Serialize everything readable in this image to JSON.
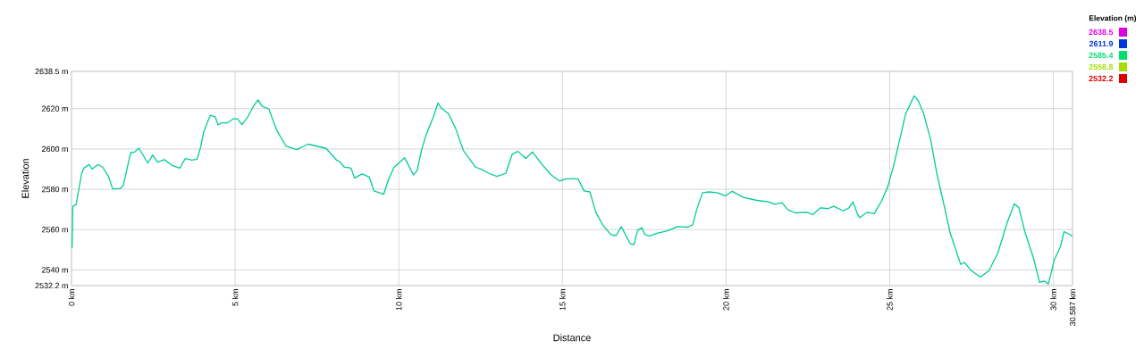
{
  "chart_data": {
    "type": "line",
    "xlabel": "Distance",
    "ylabel": "Elevation",
    "clabel": "Elevation (m)",
    "x": [
      0.02,
      0.04,
      0.14,
      0.31,
      0.38,
      0.54,
      0.63,
      0.81,
      0.95,
      1.13,
      1.26,
      1.49,
      1.58,
      1.81,
      1.93,
      2.06,
      2.33,
      2.48,
      2.63,
      2.84,
      3.09,
      3.31,
      3.48,
      3.68,
      3.84,
      3.95,
      4.04,
      4.24,
      4.39,
      4.48,
      4.59,
      4.77,
      4.95,
      5.07,
      5.21,
      5.39,
      5.54,
      5.7,
      5.82,
      6.03,
      6.27,
      6.55,
      6.88,
      7.23,
      7.78,
      8.12,
      8.19,
      8.33,
      8.54,
      8.65,
      8.88,
      9.1,
      9.24,
      9.54,
      9.67,
      9.85,
      10.18,
      10.45,
      10.56,
      10.7,
      10.83,
      11.06,
      11.2,
      11.31,
      11.52,
      11.74,
      11.97,
      12.34,
      12.56,
      12.75,
      13.0,
      13.27,
      13.47,
      13.64,
      13.88,
      14.09,
      14.38,
      14.66,
      14.91,
      15.11,
      15.48,
      15.66,
      15.84,
      16.02,
      16.25,
      16.48,
      16.64,
      16.8,
      17.07,
      17.19,
      17.3,
      17.43,
      17.52,
      17.66,
      17.89,
      18.21,
      18.52,
      18.84,
      18.98,
      19.12,
      19.28,
      19.48,
      19.75,
      19.98,
      20.19,
      20.53,
      20.94,
      21.3,
      21.48,
      21.71,
      21.89,
      22.12,
      22.48,
      22.65,
      22.89,
      23.12,
      23.29,
      23.58,
      23.76,
      23.88,
      24.01,
      24.08,
      24.31,
      24.53,
      24.76,
      24.94,
      25.13,
      25.31,
      25.49,
      25.75,
      25.87,
      26.04,
      26.26,
      26.44,
      26.65,
      26.85,
      27.08,
      27.17,
      27.29,
      27.49,
      27.77,
      28.04,
      28.31,
      28.59,
      28.81,
      28.95,
      29.13,
      29.4,
      29.58,
      29.72,
      29.85,
      30.03,
      30.22,
      30.33,
      30.587
    ],
    "values": [
      2551,
      2571.6,
      2572.3,
      2587.9,
      2590.5,
      2592.3,
      2590,
      2592.3,
      2591,
      2586.4,
      2580.1,
      2580.4,
      2581.9,
      2598.2,
      2598.5,
      2600.4,
      2593,
      2597,
      2593.5,
      2594.7,
      2591.7,
      2590.5,
      2595.3,
      2594.5,
      2594.9,
      2601.2,
      2608.6,
      2616.7,
      2616,
      2611.9,
      2613,
      2613,
      2615,
      2615,
      2612.1,
      2616,
      2620.7,
      2624.4,
      2621.2,
      2619.9,
      2609.3,
      2601.5,
      2599.7,
      2602.4,
      2600.3,
      2594.1,
      2593.8,
      2591.1,
      2590.5,
      2585.6,
      2587.6,
      2586.1,
      2579.2,
      2577.5,
      2584.1,
      2590.8,
      2595.6,
      2587.1,
      2589.3,
      2599.7,
      2606.8,
      2616,
      2622.8,
      2620.1,
      2617.5,
      2610.1,
      2599.4,
      2591.1,
      2589.6,
      2587.9,
      2586.4,
      2587.9,
      2597.5,
      2598.8,
      2595.3,
      2598.5,
      2592.3,
      2587.1,
      2584.1,
      2585.2,
      2585.2,
      2579.2,
      2578.7,
      2568.6,
      2561.9,
      2557.5,
      2557,
      2561.5,
      2553,
      2552.6,
      2559.7,
      2560.9,
      2557.5,
      2556.8,
      2558.2,
      2559.4,
      2561.5,
      2561.2,
      2562.4,
      2570.8,
      2578.2,
      2578.7,
      2578.2,
      2576.7,
      2579,
      2576,
      2574.5,
      2573.8,
      2572.6,
      2573.3,
      2569.8,
      2568.3,
      2568.6,
      2567.4,
      2570.8,
      2570.4,
      2571.6,
      2569.3,
      2570.8,
      2573.8,
      2567.9,
      2565.9,
      2568.6,
      2567.9,
      2574.5,
      2581.2,
      2592.3,
      2604.9,
      2617.5,
      2626.4,
      2624.1,
      2617.5,
      2604.1,
      2587.9,
      2573,
      2558.2,
      2547.1,
      2542.7,
      2543.7,
      2539.7,
      2536.4,
      2539.7,
      2548.6,
      2563.4,
      2572.8,
      2570.8,
      2559,
      2545.6,
      2533.8,
      2534.5,
      2533,
      2544.9,
      2551.6,
      2559,
      2556.8
    ],
    "xlim": [
      0,
      30.587
    ],
    "ylim": [
      2532.2,
      2638.5
    ],
    "xticks": [
      {
        "value": 0,
        "label": "0 km"
      },
      {
        "value": 5,
        "label": "5 km"
      },
      {
        "value": 10,
        "label": "10 km"
      },
      {
        "value": 15,
        "label": "15 km"
      },
      {
        "value": 20,
        "label": "20 km"
      },
      {
        "value": 25,
        "label": "25 km"
      },
      {
        "value": 30,
        "label": "30 km"
      },
      {
        "value": 30.587,
        "label": "30.587 km"
      }
    ],
    "yticks": [
      {
        "value": 2532.2,
        "label": "2532.2 m"
      },
      {
        "value": 2540,
        "label": "2540 m"
      },
      {
        "value": 2560,
        "label": "2560 m"
      },
      {
        "value": 2580,
        "label": "2580 m"
      },
      {
        "value": 2600,
        "label": "2600 m"
      },
      {
        "value": 2620,
        "label": "2620 m"
      },
      {
        "value": 2638.5,
        "label": "2638.5 m"
      }
    ],
    "clim": [
      2532.2,
      2638.5
    ],
    "cticks": [
      {
        "value": 2638.5,
        "label": "2638.5"
      },
      {
        "value": 2611.9,
        "label": "2611.9"
      },
      {
        "value": 2585.4,
        "label": "2585.4"
      },
      {
        "value": 2558.8,
        "label": "2558.8"
      },
      {
        "value": 2532.2,
        "label": "2532.2"
      }
    ],
    "color": "#00cc99",
    "grid": true,
    "marker": "none",
    "line_style": "solid"
  }
}
